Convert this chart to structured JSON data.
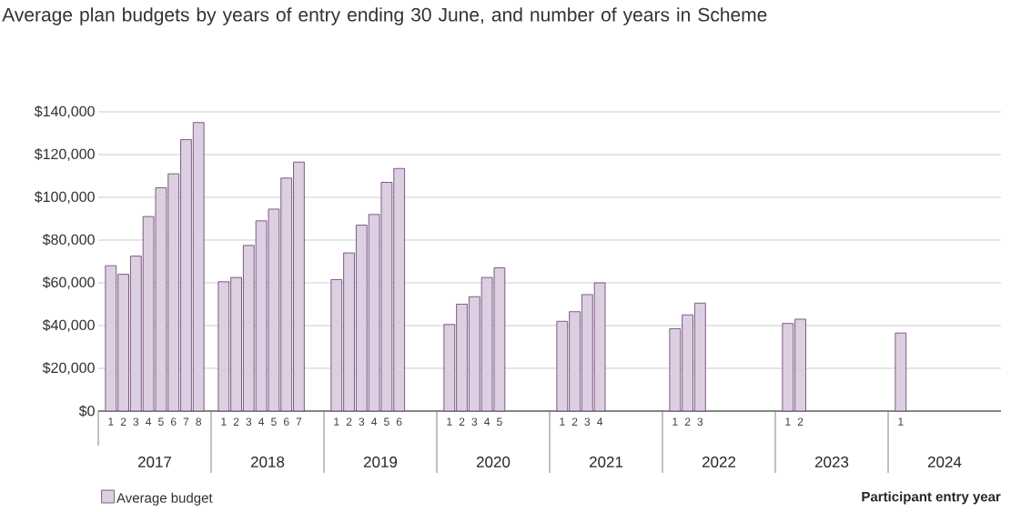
{
  "chart_data": {
    "type": "bar",
    "title": "Average plan budgets by years of entry ending 30 June, and number of years in Scheme",
    "categories": [
      "1",
      "2",
      "3",
      "4",
      "5",
      "6",
      "7",
      "8",
      "1",
      "2",
      "3",
      "4",
      "5",
      "6",
      "7",
      null,
      "1",
      "2",
      "3",
      "4",
      "5",
      "6",
      null,
      null,
      "1",
      "2",
      "3",
      "4",
      "5",
      null,
      null,
      null,
      "1",
      "2",
      "3",
      "4",
      null,
      null,
      null,
      null,
      "1",
      "2",
      "3",
      null,
      null,
      null,
      null,
      null,
      "1",
      "2",
      null,
      null,
      null,
      null,
      null,
      null,
      "1",
      null,
      null,
      null,
      null,
      null,
      null,
      null
    ],
    "series": [
      {
        "name": "Average budget",
        "color": "#dccfe2",
        "values": [
          68000,
          64000,
          72500,
          91000,
          104500,
          111000,
          127000,
          135000,
          60500,
          62500,
          77500,
          89000,
          94500,
          109000,
          116500,
          null,
          61500,
          74000,
          87000,
          92000,
          107000,
          113500,
          null,
          null,
          40500,
          50000,
          53500,
          62500,
          67000,
          null,
          null,
          null,
          42000,
          46500,
          54500,
          60000,
          null,
          null,
          null,
          null,
          38500,
          45000,
          50500,
          null,
          null,
          null,
          null,
          null,
          41000,
          43000,
          null,
          null,
          null,
          null,
          null,
          null,
          36500,
          null,
          null,
          null,
          null,
          null,
          null,
          null
        ]
      }
    ],
    "xlabel": "Participant entry year",
    "annotations": [
      "2017",
      "2018",
      "2019",
      "2020",
      "2021",
      "2022",
      "2023",
      "2024"
    ],
    "ylim": [
      0,
      140000
    ],
    "yticks": [
      {
        "value": 0,
        "label": "$0"
      },
      {
        "value": 20000,
        "label": "$20,000"
      },
      {
        "value": 40000,
        "label": "$40,000"
      },
      {
        "value": 60000,
        "label": "$60,000"
      },
      {
        "value": 80000,
        "label": "$80,000"
      },
      {
        "value": 100000,
        "label": "$100,000"
      },
      {
        "value": 120000,
        "label": "$120,000"
      },
      {
        "value": 140000,
        "label": "$140,000"
      }
    ],
    "grid": "y",
    "legend": "bottom left"
  }
}
